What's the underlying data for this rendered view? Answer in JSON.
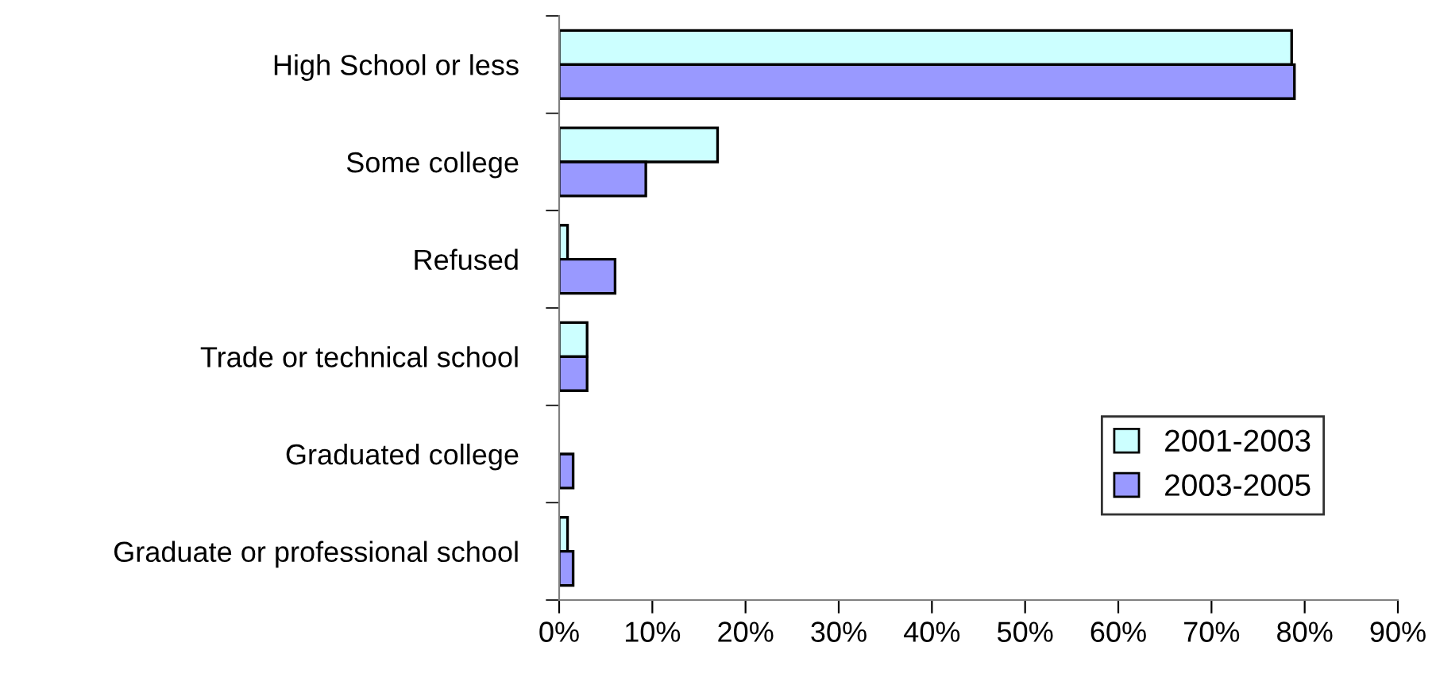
{
  "chart_data": {
    "type": "bar",
    "orientation": "horizontal",
    "categories": [
      "High School or less",
      "Some college",
      "Refused",
      "Trade or technical school",
      "Graduated college",
      "Graduate or professional school"
    ],
    "series": [
      {
        "name": "2001-2003",
        "color": "#ccffff",
        "values": [
          78.6,
          17.0,
          0.9,
          3.0,
          null,
          0.9
        ]
      },
      {
        "name": "2003-2005",
        "color": "#9999ff",
        "values": [
          78.9,
          9.3,
          6.0,
          3.0,
          1.5,
          1.5
        ]
      }
    ],
    "xlim": [
      0,
      90
    ],
    "xticks": [
      {
        "value": 0,
        "label": "0%"
      },
      {
        "value": 10,
        "label": "10%"
      },
      {
        "value": 20,
        "label": "20%"
      },
      {
        "value": 30,
        "label": "30%"
      },
      {
        "value": 40,
        "label": "40%"
      },
      {
        "value": 50,
        "label": "50%"
      },
      {
        "value": 60,
        "label": "60%"
      },
      {
        "value": 70,
        "label": "70%"
      },
      {
        "value": 80,
        "label": "80%"
      },
      {
        "value": 90,
        "label": "90%"
      }
    ],
    "grid": false,
    "legend": "bottom right"
  }
}
